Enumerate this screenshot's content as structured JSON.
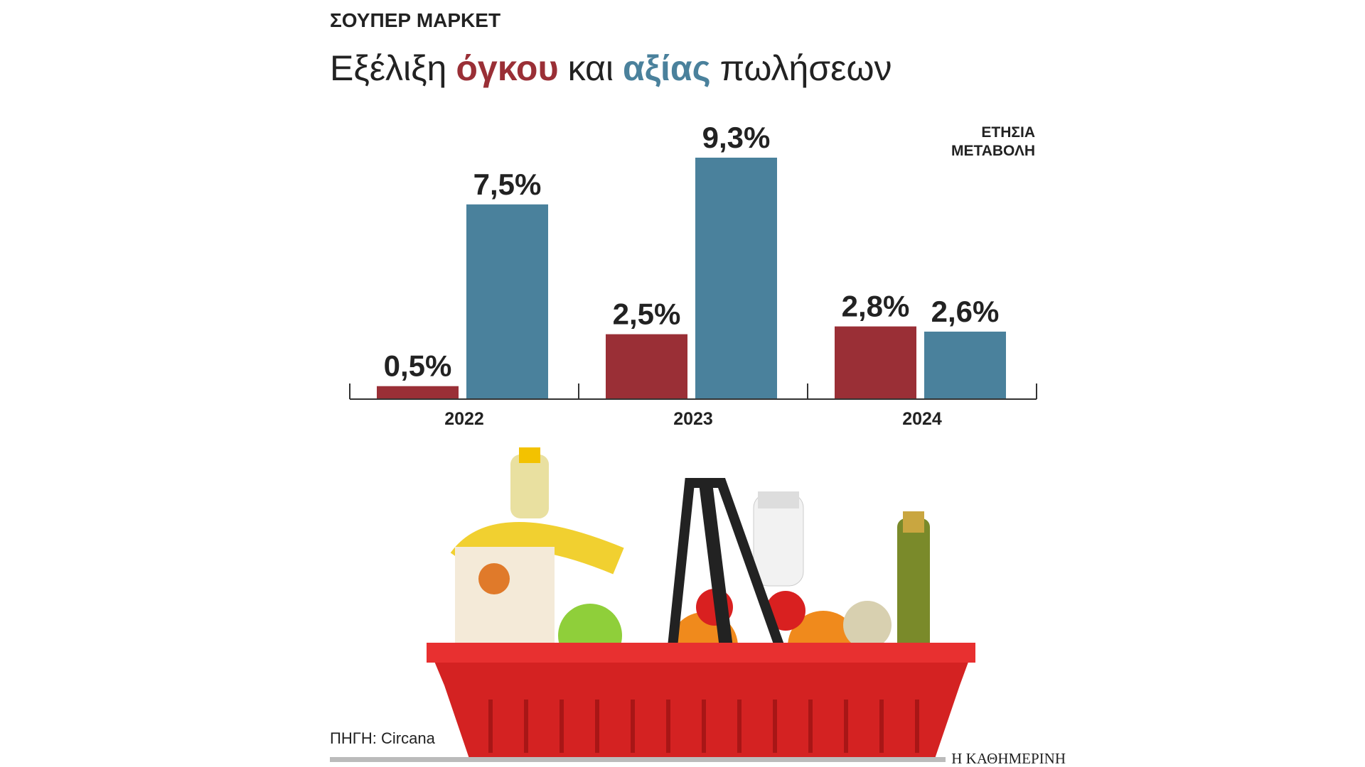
{
  "supertitle": "ΣΟΥΠΕΡ ΜΑΡΚΕΤ",
  "chart_data": {
    "type": "bar",
    "title_parts": [
      "Εξέλιξη",
      "και",
      "πωλήσεων"
    ],
    "annotation": [
      "ΕΤΗΣΙΑ",
      "ΜΕΤΑΒΟΛΗ"
    ],
    "categories": [
      "2022",
      "2023",
      "2024"
    ],
    "series": [
      {
        "name": "όγκου",
        "color": "#9a2f36",
        "values": [
          0.5,
          2.5,
          2.8
        ],
        "value_labels": [
          "0,5%",
          "2,5%",
          "2,8%"
        ]
      },
      {
        "name": "αξίας",
        "color": "#4a819c",
        "values": [
          7.5,
          9.3,
          2.6
        ],
        "value_labels": [
          "7,5%",
          "9,3%",
          "2,6%"
        ]
      }
    ]
  },
  "source": "ΠΗΓΗ: Circana",
  "credit": "Η ΚΑΘΗΜΕΡΙΝΗ"
}
